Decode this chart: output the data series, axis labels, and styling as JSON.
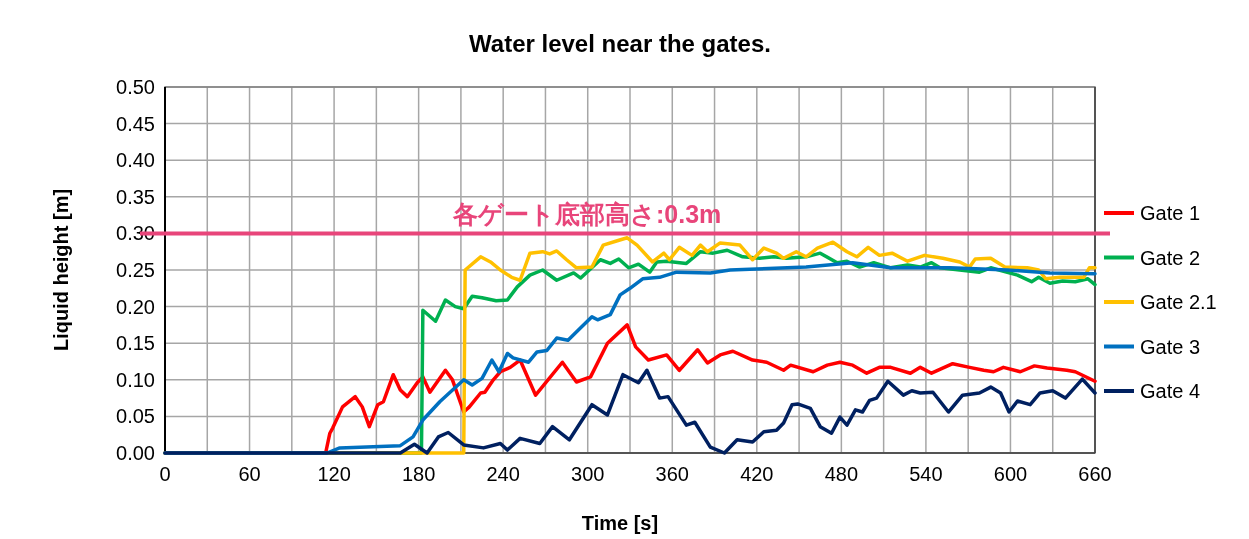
{
  "chart_data": {
    "type": "line",
    "title": "Water level near the gates.",
    "xlabel": "Time [s]",
    "ylabel": "Liquid height [m]",
    "xlim": [
      0,
      660
    ],
    "ylim": [
      0,
      0.5
    ],
    "xticks": [
      0,
      {
        "value": 30,
        "label": null
      },
      60,
      {
        "value": 90,
        "label": null
      },
      120,
      {
        "value": 150,
        "label": null
      },
      180,
      {
        "value": 210,
        "label": null
      },
      240,
      {
        "value": 270,
        "label": null
      },
      300,
      {
        "value": 330,
        "label": null
      },
      360,
      {
        "value": 390,
        "label": null
      },
      420,
      {
        "value": 450,
        "label": null
      },
      480,
      {
        "value": 510,
        "label": null
      },
      540,
      {
        "value": 570,
        "label": null
      },
      600,
      {
        "value": 630,
        "label": null
      },
      660
    ],
    "yticks": [
      {
        "value": 0,
        "label": "0.00"
      },
      {
        "value": 0.05,
        "label": "0.05"
      },
      {
        "value": 0.1,
        "label": "0.10"
      },
      {
        "value": 0.15,
        "label": "0.15"
      },
      {
        "value": 0.2,
        "label": "0.20"
      },
      {
        "value": 0.25,
        "label": "0.25"
      },
      {
        "value": 0.3,
        "label": "0.30"
      },
      {
        "value": 0.35,
        "label": "0.35"
      },
      {
        "value": 0.4,
        "label": "0.40"
      },
      {
        "value": 0.45,
        "label": "0.45"
      },
      {
        "value": 0.5,
        "label": "0.50"
      }
    ],
    "grid": true,
    "legend": "right",
    "marker": "none",
    "line_style": "solid",
    "ref_lines": [
      {
        "axis": "y",
        "value": 0.3,
        "label": "各ゲート底部高さ:0.3m",
        "color": "#e8457a"
      }
    ],
    "series": [
      {
        "name": "Gate 1",
        "color": "#ff0000",
        "x": [
          0,
          114,
          117,
          119,
          126,
          135,
          140,
          145,
          151,
          155,
          162,
          167,
          172,
          179,
          183,
          188,
          199,
          204,
          212,
          216,
          224,
          227,
          233,
          238,
          245,
          252,
          263,
          282,
          292,
          302,
          314,
          328,
          334,
          343,
          356,
          365,
          378,
          385,
          394,
          403,
          417,
          427,
          439,
          444,
          460,
          470,
          479,
          488,
          498,
          507,
          515,
          529,
          536,
          544,
          559,
          571,
          581,
          588,
          595,
          607,
          617,
          626,
          640,
          646,
          660
        ],
        "values": [
          0,
          0,
          0.027,
          0.034,
          0.063,
          0.077,
          0.063,
          0.036,
          0.066,
          0.07,
          0.107,
          0.086,
          0.077,
          0.096,
          0.104,
          0.083,
          0.113,
          0.1,
          0.056,
          0.063,
          0.082,
          0.083,
          0.1,
          0.111,
          0.117,
          0.127,
          0.079,
          0.124,
          0.097,
          0.104,
          0.15,
          0.175,
          0.145,
          0.127,
          0.134,
          0.113,
          0.141,
          0.123,
          0.134,
          0.139,
          0.127,
          0.124,
          0.113,
          0.12,
          0.111,
          0.12,
          0.124,
          0.12,
          0.109,
          0.117,
          0.117,
          0.109,
          0.117,
          0.109,
          0.122,
          0.117,
          0.113,
          0.111,
          0.117,
          0.111,
          0.119,
          0.116,
          0.113,
          0.111,
          0.098
        ]
      },
      {
        "name": "Gate 2",
        "color": "#00b050",
        "x": [
          0,
          182,
          183,
          192,
          199,
          206,
          212,
          218,
          225,
          235,
          243,
          250,
          259,
          268,
          278,
          290,
          295,
          309,
          316,
          322,
          329,
          336,
          344,
          349,
          356,
          370,
          380,
          389,
          399,
          410,
          422,
          432,
          441,
          455,
          465,
          477,
          484,
          493,
          503,
          515,
          527,
          536,
          544,
          550,
          564,
          578,
          586,
          605,
          615,
          620,
          628,
          637,
          646,
          655,
          660
        ],
        "values": [
          0,
          0,
          0.195,
          0.18,
          0.209,
          0.2,
          0.197,
          0.214,
          0.212,
          0.208,
          0.209,
          0.227,
          0.243,
          0.25,
          0.236,
          0.246,
          0.239,
          0.264,
          0.259,
          0.265,
          0.253,
          0.258,
          0.247,
          0.261,
          0.262,
          0.259,
          0.275,
          0.273,
          0.277,
          0.268,
          0.266,
          0.268,
          0.266,
          0.268,
          0.273,
          0.26,
          0.262,
          0.254,
          0.26,
          0.253,
          0.257,
          0.254,
          0.26,
          0.253,
          0.25,
          0.247,
          0.253,
          0.243,
          0.234,
          0.24,
          0.232,
          0.235,
          0.234,
          0.238,
          0.23
        ]
      },
      {
        "name": "Gate 2.1",
        "color": "#ffc000",
        "x": [
          0,
          212,
          213,
          224,
          231,
          238,
          246,
          252,
          259,
          268,
          273,
          278,
          285,
          292,
          303,
          311,
          321,
          328,
          335,
          346,
          354,
          358,
          365,
          374,
          380,
          385,
          394,
          408,
          417,
          425,
          434,
          439,
          448,
          455,
          463,
          474,
          484,
          491,
          499,
          507,
          516,
          527,
          539,
          552,
          564,
          571,
          575,
          586,
          596,
          612,
          620,
          625,
          635,
          652,
          656,
          660
        ],
        "values": [
          0,
          0,
          0.25,
          0.268,
          0.261,
          0.25,
          0.24,
          0.236,
          0.273,
          0.275,
          0.272,
          0.276,
          0.264,
          0.253,
          0.254,
          0.284,
          0.29,
          0.294,
          0.284,
          0.261,
          0.273,
          0.264,
          0.281,
          0.27,
          0.284,
          0.275,
          0.287,
          0.284,
          0.264,
          0.28,
          0.273,
          0.266,
          0.275,
          0.268,
          0.28,
          0.288,
          0.275,
          0.268,
          0.281,
          0.27,
          0.273,
          0.262,
          0.27,
          0.266,
          0.261,
          0.254,
          0.265,
          0.266,
          0.254,
          0.253,
          0.25,
          0.238,
          0.24,
          0.24,
          0.253,
          0.253
        ]
      },
      {
        "name": "Gate 3",
        "color": "#0070c0",
        "x": [
          0,
          115,
          124,
          167,
          176,
          183,
          195,
          212,
          218,
          225,
          232,
          237,
          243,
          247,
          258,
          264,
          271,
          278,
          286,
          295,
          303,
          307,
          316,
          323,
          330,
          339,
          351,
          363,
          387,
          401,
          415,
          455,
          488,
          515,
          557,
          598,
          628,
          660
        ],
        "values": [
          0,
          0,
          0.007,
          0.01,
          0.022,
          0.045,
          0.07,
          0.1,
          0.093,
          0.102,
          0.127,
          0.111,
          0.136,
          0.13,
          0.124,
          0.138,
          0.14,
          0.157,
          0.154,
          0.171,
          0.186,
          0.182,
          0.189,
          0.216,
          0.225,
          0.238,
          0.24,
          0.247,
          0.246,
          0.25,
          0.251,
          0.254,
          0.26,
          0.253,
          0.253,
          0.25,
          0.246,
          0.245
        ]
      },
      {
        "name": "Gate 4",
        "color": "#002060",
        "x": [
          0,
          167,
          177,
          186,
          194,
          201,
          212,
          226,
          238,
          243,
          252,
          266,
          275,
          287,
          303,
          314,
          325,
          336,
          342,
          351,
          357,
          370,
          376,
          387,
          397,
          406,
          417,
          425,
          434,
          439,
          445,
          449,
          458,
          465,
          473,
          479,
          484,
          490,
          495,
          500,
          505,
          513,
          524,
          530,
          536,
          545,
          556,
          566,
          578,
          586,
          593,
          599,
          605,
          614,
          621,
          630,
          639,
          651,
          660
        ],
        "values": [
          0,
          0,
          0.012,
          0,
          0.022,
          0.028,
          0.011,
          0.007,
          0.013,
          0.004,
          0.02,
          0.013,
          0.036,
          0.018,
          0.066,
          0.052,
          0.107,
          0.096,
          0.113,
          0.075,
          0.077,
          0.038,
          0.042,
          0.008,
          0,
          0.018,
          0.015,
          0.029,
          0.031,
          0.041,
          0.066,
          0.067,
          0.061,
          0.036,
          0.027,
          0.049,
          0.038,
          0.059,
          0.056,
          0.072,
          0.075,
          0.098,
          0.079,
          0.085,
          0.082,
          0.083,
          0.056,
          0.079,
          0.082,
          0.09,
          0.082,
          0.056,
          0.071,
          0.066,
          0.082,
          0.085,
          0.075,
          0.101,
          0.082
        ]
      }
    ]
  }
}
